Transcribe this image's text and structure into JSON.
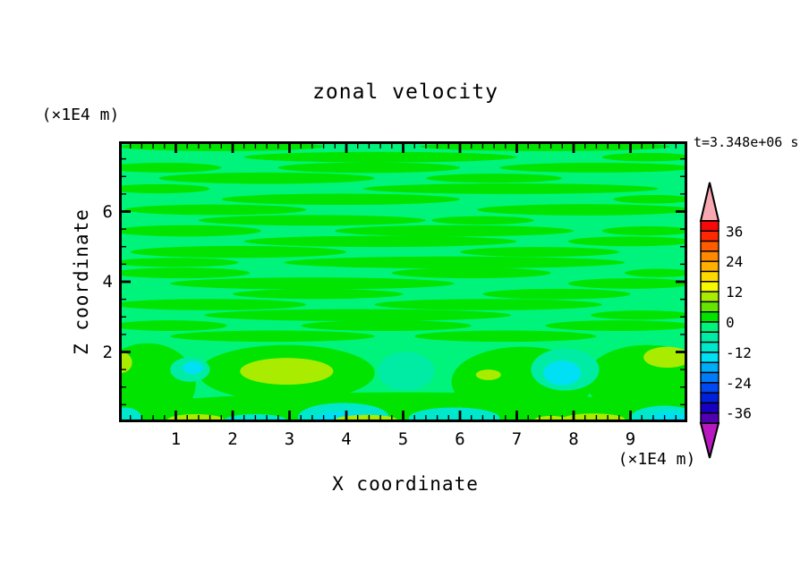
{
  "title": "zonal velocity",
  "time_label": "t=3.348e+06 s",
  "chart_data": {
    "type": "contour",
    "title": "zonal velocity",
    "xlabel": "X coordinate",
    "ylabel": "Z coordinate",
    "x_unit_label": "(×1E4 m)",
    "y_unit_label": "(×1E4 m)",
    "time_annotation": "t=3.348e+06 s",
    "x_range": [
      0,
      10
    ],
    "y_range": [
      0,
      8
    ],
    "x_major_ticks": [
      1,
      2,
      3,
      4,
      5,
      6,
      7,
      8,
      9
    ],
    "x_minor_step": 0.2,
    "y_major_ticks": [
      2,
      4,
      6
    ],
    "y_minor_step": 0.5,
    "grid": false,
    "contour_interval": 4,
    "colorbar": {
      "position": "right",
      "labels": [
        36,
        24,
        12,
        0,
        -12,
        -24,
        -36
      ],
      "band_interval": 4,
      "range": [
        -40,
        40
      ],
      "over_arrow_color": "#f8a8b0",
      "under_arrow_color": "#b818c0",
      "bands_top_to_bottom": [
        {
          "min": 36,
          "max": 40,
          "color": "#f80808"
        },
        {
          "min": 32,
          "max": 36,
          "color": "#ff2800"
        },
        {
          "min": 28,
          "max": 32,
          "color": "#ff5c00"
        },
        {
          "min": 24,
          "max": 28,
          "color": "#ff8800"
        },
        {
          "min": 20,
          "max": 24,
          "color": "#ffb000"
        },
        {
          "min": 16,
          "max": 20,
          "color": "#ffd800"
        },
        {
          "min": 12,
          "max": 16,
          "color": "#f8f800"
        },
        {
          "min": 8,
          "max": 12,
          "color": "#aaec00"
        },
        {
          "min": 4,
          "max": 8,
          "color": "#64e400"
        },
        {
          "min": 0,
          "max": 4,
          "color": "#00e400"
        },
        {
          "min": -4,
          "max": 0,
          "color": "#00f47c"
        },
        {
          "min": -8,
          "max": -4,
          "color": "#00eca4"
        },
        {
          "min": -12,
          "max": -8,
          "color": "#00e8cc"
        },
        {
          "min": -16,
          "max": -12,
          "color": "#00e0f4"
        },
        {
          "min": -20,
          "max": -16,
          "color": "#00acf8"
        },
        {
          "min": -24,
          "max": -20,
          "color": "#007cf8"
        },
        {
          "min": -28,
          "max": -24,
          "color": "#0048f4"
        },
        {
          "min": -32,
          "max": -28,
          "color": "#0020dc"
        },
        {
          "min": -36,
          "max": -32,
          "color": "#1800c0"
        },
        {
          "min": -40,
          "max": -36,
          "color": "#5000b0"
        }
      ]
    },
    "palette": {
      "g": "#00e400",
      "s": "#00f47c",
      "a": "#00eca4",
      "t": "#00e8cc",
      "c": "#00e0f4",
      "y": "#64e400",
      "Y": "#aaec00"
    },
    "background_band": "s",
    "streaks": [
      {
        "x": 1.8,
        "z": 7.85,
        "rx": 1.8,
        "rz": 0.13
      },
      {
        "x": 7.5,
        "z": 7.85,
        "rx": 2.2,
        "rz": 0.13
      },
      {
        "x": 4.6,
        "z": 7.55,
        "rx": 2.4,
        "rz": 0.15
      },
      {
        "x": 9.3,
        "z": 7.55,
        "rx": 0.8,
        "rz": 0.12
      },
      {
        "x": 0.8,
        "z": 7.25,
        "rx": 1.0,
        "rz": 0.14
      },
      {
        "x": 4.4,
        "z": 7.25,
        "rx": 1.6,
        "rz": 0.15
      },
      {
        "x": 8.4,
        "z": 7.25,
        "rx": 1.7,
        "rz": 0.14
      },
      {
        "x": 2.6,
        "z": 6.95,
        "rx": 1.9,
        "rz": 0.16
      },
      {
        "x": 6.6,
        "z": 6.95,
        "rx": 1.2,
        "rz": 0.13
      },
      {
        "x": 0.7,
        "z": 6.65,
        "rx": 0.9,
        "rz": 0.13
      },
      {
        "x": 6.9,
        "z": 6.65,
        "rx": 2.6,
        "rz": 0.15
      },
      {
        "x": 3.9,
        "z": 6.35,
        "rx": 2.1,
        "rz": 0.16
      },
      {
        "x": 9.4,
        "z": 6.35,
        "rx": 0.7,
        "rz": 0.12
      },
      {
        "x": 1.7,
        "z": 6.05,
        "rx": 1.6,
        "rz": 0.15
      },
      {
        "x": 8.2,
        "z": 6.05,
        "rx": 1.9,
        "rz": 0.16
      },
      {
        "x": 3.4,
        "z": 5.75,
        "rx": 2.0,
        "rz": 0.15
      },
      {
        "x": 6.4,
        "z": 5.75,
        "rx": 0.9,
        "rz": 0.12
      },
      {
        "x": 1.2,
        "z": 5.45,
        "rx": 1.3,
        "rz": 0.16
      },
      {
        "x": 5.9,
        "z": 5.45,
        "rx": 2.1,
        "rz": 0.16
      },
      {
        "x": 9.3,
        "z": 5.45,
        "rx": 0.8,
        "rz": 0.13
      },
      {
        "x": 4.6,
        "z": 5.15,
        "rx": 2.4,
        "rz": 0.16
      },
      {
        "x": 9.0,
        "z": 5.15,
        "rx": 1.1,
        "rz": 0.14
      },
      {
        "x": 2.1,
        "z": 4.85,
        "rx": 1.9,
        "rz": 0.17
      },
      {
        "x": 7.4,
        "z": 4.85,
        "rx": 1.4,
        "rz": 0.14
      },
      {
        "x": 1.0,
        "z": 4.55,
        "rx": 1.1,
        "rz": 0.13
      },
      {
        "x": 5.9,
        "z": 4.55,
        "rx": 3.0,
        "rz": 0.17
      },
      {
        "x": 1.1,
        "z": 4.25,
        "rx": 1.2,
        "rz": 0.15
      },
      {
        "x": 6.2,
        "z": 4.25,
        "rx": 1.4,
        "rz": 0.15
      },
      {
        "x": 9.5,
        "z": 4.25,
        "rx": 0.6,
        "rz": 0.12
      },
      {
        "x": 3.4,
        "z": 3.95,
        "rx": 2.5,
        "rz": 0.17
      },
      {
        "x": 9.0,
        "z": 3.95,
        "rx": 1.1,
        "rz": 0.15
      },
      {
        "x": 3.5,
        "z": 3.65,
        "rx": 1.5,
        "rz": 0.14
      },
      {
        "x": 7.7,
        "z": 3.65,
        "rx": 1.3,
        "rz": 0.15
      },
      {
        "x": 1.6,
        "z": 3.35,
        "rx": 1.7,
        "rz": 0.16
      },
      {
        "x": 6.5,
        "z": 3.35,
        "rx": 2.0,
        "rz": 0.16
      },
      {
        "x": 4.2,
        "z": 3.05,
        "rx": 2.7,
        "rz": 0.17
      },
      {
        "x": 9.2,
        "z": 3.05,
        "rx": 0.9,
        "rz": 0.13
      },
      {
        "x": 0.9,
        "z": 2.75,
        "rx": 1.0,
        "rz": 0.15
      },
      {
        "x": 4.7,
        "z": 2.75,
        "rx": 1.5,
        "rz": 0.15
      },
      {
        "x": 8.8,
        "z": 2.75,
        "rx": 1.3,
        "rz": 0.15
      },
      {
        "x": 2.7,
        "z": 2.45,
        "rx": 1.8,
        "rz": 0.16
      },
      {
        "x": 6.8,
        "z": 2.45,
        "rx": 1.6,
        "rz": 0.16
      }
    ],
    "regions": [
      {
        "c": "g",
        "x": 0.5,
        "z": 1.1,
        "rx": 0.85,
        "rz": 1.15
      },
      {
        "c": "g",
        "x": 2.95,
        "z": 1.4,
        "rx": 1.55,
        "rz": 0.8
      },
      {
        "c": "g",
        "x": 7.1,
        "z": 1.15,
        "rx": 1.25,
        "rz": 1.0
      },
      {
        "c": "g",
        "x": 9.3,
        "z": 1.2,
        "rx": 1.1,
        "rz": 1.0
      },
      {
        "c": "g",
        "x": 5.0,
        "z": 0.3,
        "rx": 5.1,
        "rz": 0.55
      },
      {
        "c": "a",
        "x": 1.25,
        "z": 1.5,
        "rx": 0.35,
        "rz": 0.35
      },
      {
        "c": "c",
        "x": 1.3,
        "z": 1.55,
        "rx": 0.18,
        "rz": 0.18
      },
      {
        "c": "a",
        "x": 5.05,
        "z": 1.45,
        "rx": 0.5,
        "rz": 0.55
      },
      {
        "c": "a",
        "x": 7.85,
        "z": 1.5,
        "rx": 0.6,
        "rz": 0.6
      },
      {
        "c": "c",
        "x": 7.8,
        "z": 1.4,
        "rx": 0.33,
        "rz": 0.35
      },
      {
        "c": "t",
        "x": 3.95,
        "z": 0.15,
        "rx": 0.8,
        "rz": 0.4
      },
      {
        "c": "c",
        "x": 3.95,
        "z": 0.08,
        "rx": 0.5,
        "rz": 0.22
      },
      {
        "c": "t",
        "x": 5.9,
        "z": 0.12,
        "rx": 0.8,
        "rz": 0.3
      },
      {
        "c": "t",
        "x": 2.4,
        "z": 0.05,
        "rx": 0.55,
        "rz": 0.18
      },
      {
        "c": "t",
        "x": 9.6,
        "z": 0.12,
        "rx": 0.6,
        "rz": 0.35
      },
      {
        "c": "c",
        "x": 9.7,
        "z": 0.08,
        "rx": 0.35,
        "rz": 0.2
      },
      {
        "c": "t",
        "x": 0.1,
        "z": 0.12,
        "rx": 0.3,
        "rz": 0.3
      },
      {
        "c": "Y",
        "x": 2.95,
        "z": 1.45,
        "rx": 0.82,
        "rz": 0.38
      },
      {
        "c": "Y",
        "x": 6.5,
        "z": 1.35,
        "rx": 0.22,
        "rz": 0.15
      },
      {
        "c": "Y",
        "x": 9.65,
        "z": 1.85,
        "rx": 0.42,
        "rz": 0.3
      },
      {
        "c": "Y",
        "x": 0.03,
        "z": 1.7,
        "rx": 0.2,
        "rz": 0.3
      },
      {
        "c": "Y",
        "x": 1.35,
        "z": 0.06,
        "rx": 0.5,
        "rz": 0.17
      },
      {
        "c": "Y",
        "x": 4.35,
        "z": 0.06,
        "rx": 0.55,
        "rz": 0.15
      },
      {
        "c": "Y",
        "x": 7.6,
        "z": 0.05,
        "rx": 0.3,
        "rz": 0.13
      },
      {
        "c": "Y",
        "x": 8.35,
        "z": 0.08,
        "rx": 0.55,
        "rz": 0.17
      }
    ]
  }
}
